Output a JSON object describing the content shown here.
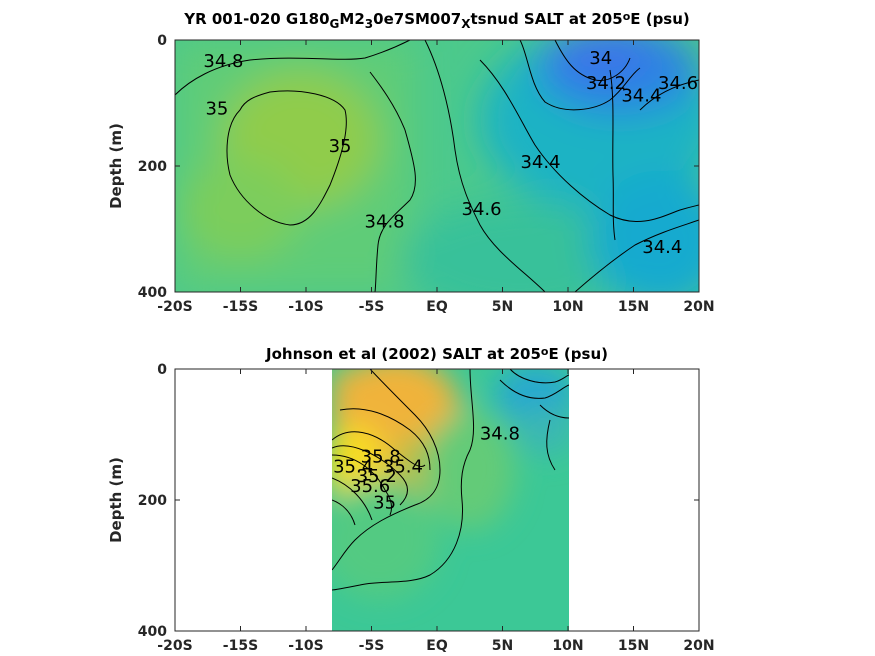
{
  "chart_data": [
    {
      "type": "contour",
      "title_parts": [
        "YR 001-020 G180",
        "G",
        "M2",
        "3",
        "0e7SM007",
        "X",
        "tsnud SALT at 205",
        "o",
        "E (psu)"
      ],
      "ylabel": "Depth (m)",
      "x_ticks": [
        -20,
        -15,
        -10,
        -5,
        0,
        5,
        10,
        15,
        20
      ],
      "x_tick_labels": [
        "-20S",
        "-15S",
        "-10S",
        "-5S",
        "EQ",
        "5N",
        "10N",
        "15N",
        "20N"
      ],
      "y_ticks": [
        0,
        200,
        400
      ],
      "y_tick_labels": [
        "0",
        "200",
        "400"
      ],
      "xlim": [
        -20,
        20
      ],
      "ylim": [
        0,
        400
      ],
      "y_reversed": true,
      "data_extent": {
        "x": [
          -20,
          20
        ],
        "depth": [
          0,
          385
        ]
      },
      "colormap": "parula",
      "contour_labels": [
        {
          "text": "34.8",
          "lat": -16.3,
          "depth": 35
        },
        {
          "text": "35",
          "lat": -16.8,
          "depth": 110
        },
        {
          "text": "35",
          "lat": -7.4,
          "depth": 170
        },
        {
          "text": "34.8",
          "lat": -4.0,
          "depth": 290
        },
        {
          "text": "34.6",
          "lat": 3.4,
          "depth": 270
        },
        {
          "text": "34.4",
          "lat": 7.9,
          "depth": 195
        },
        {
          "text": "34",
          "lat": 12.5,
          "depth": 30
        },
        {
          "text": "34.2",
          "lat": 12.9,
          "depth": 70
        },
        {
          "text": "34.4",
          "lat": 15.6,
          "depth": 90
        },
        {
          "text": "34.6",
          "lat": 18.4,
          "depth": 70
        },
        {
          "text": "34.4",
          "lat": 17.2,
          "depth": 330
        }
      ]
    },
    {
      "type": "contour",
      "title_parts": [
        "Johnson et al (2002) SALT at 205",
        "o",
        "E (psu)"
      ],
      "ylabel": "Depth (m)",
      "x_ticks": [
        -20,
        -15,
        -10,
        -5,
        0,
        5,
        10,
        15,
        20
      ],
      "x_tick_labels": [
        "-20S",
        "-15S",
        "-10S",
        "-5S",
        "EQ",
        "5N",
        "10N",
        "15N",
        "20N"
      ],
      "y_ticks": [
        0,
        200,
        400
      ],
      "y_tick_labels": [
        "0",
        "200",
        "400"
      ],
      "xlim": [
        -20,
        20
      ],
      "ylim": [
        0,
        400
      ],
      "y_reversed": true,
      "data_extent": {
        "x": [
          -8,
          10
        ],
        "depth": [
          0,
          400
        ]
      },
      "colormap": "parula",
      "contour_labels": [
        {
          "text": "34.8",
          "lat": 4.8,
          "depth": 100
        },
        {
          "text": "35",
          "lat": -4.0,
          "depth": 205
        },
        {
          "text": "35.2",
          "lat": -4.6,
          "depth": 165
        },
        {
          "text": "35.4",
          "lat": -2.6,
          "depth": 150
        },
        {
          "text": "35.6",
          "lat": -5.1,
          "depth": 180
        },
        {
          "text": "35.8",
          "lat": -4.3,
          "depth": 135
        },
        {
          "text": "35.4",
          "lat": -6.4,
          "depth": 150
        }
      ]
    }
  ]
}
